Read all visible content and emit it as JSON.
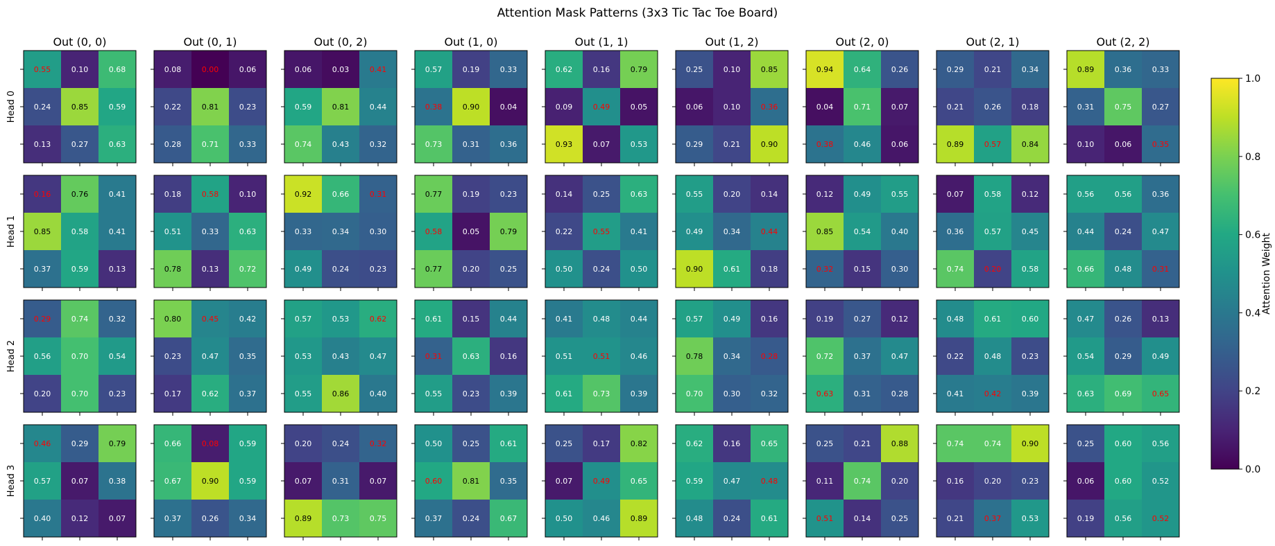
{
  "chart_data": {
    "type": "heatmap",
    "title": "Attention Mask Patterns (3x3 Tic Tac Toe Board)",
    "colormap": "viridis",
    "color_range": [
      0.0,
      1.0
    ],
    "colorbar": {
      "label": "Attention Weight",
      "ticks": [
        0.0,
        0.2,
        0.4,
        0.6,
        0.8,
        1.0
      ],
      "tick_labels": [
        "0.0",
        "0.2",
        "0.4",
        "0.6",
        "0.8",
        "1.0"
      ],
      "placement": "right"
    },
    "highlight_color": "#ff0000",
    "columns": [
      "Out (0, 0)",
      "Out (0, 1)",
      "Out (0, 2)",
      "Out (1, 0)",
      "Out (1, 1)",
      "Out (1, 2)",
      "Out (2, 0)",
      "Out (2, 1)",
      "Out (2, 2)"
    ],
    "rows": [
      "Head 0",
      "Head 1",
      "Head 2",
      "Head 3"
    ],
    "panels": [
      [
        {
          "values": [
            [
              "0.55",
              "0.10",
              "0.68"
            ],
            [
              "0.24",
              "0.85",
              "0.59"
            ],
            [
              "0.13",
              "0.27",
              "0.63"
            ]
          ],
          "highlight": [
            0,
            0
          ]
        },
        {
          "values": [
            [
              "0.08",
              "0.00",
              "0.06"
            ],
            [
              "0.22",
              "0.81",
              "0.23"
            ],
            [
              "0.28",
              "0.71",
              "0.33"
            ]
          ],
          "highlight": [
            0,
            1
          ]
        },
        {
          "values": [
            [
              "0.06",
              "0.03",
              "0.41"
            ],
            [
              "0.59",
              "0.81",
              "0.44"
            ],
            [
              "0.74",
              "0.43",
              "0.32"
            ]
          ],
          "highlight": [
            0,
            2
          ]
        },
        {
          "values": [
            [
              "0.57",
              "0.19",
              "0.33"
            ],
            [
              "0.38",
              "0.90",
              "0.04"
            ],
            [
              "0.73",
              "0.31",
              "0.36"
            ]
          ],
          "highlight": [
            1,
            0
          ]
        },
        {
          "values": [
            [
              "0.62",
              "0.16",
              "0.79"
            ],
            [
              "0.09",
              "0.49",
              "0.05"
            ],
            [
              "0.93",
              "0.07",
              "0.53"
            ]
          ],
          "highlight": [
            1,
            1
          ]
        },
        {
          "values": [
            [
              "0.25",
              "0.10",
              "0.85"
            ],
            [
              "0.06",
              "0.10",
              "0.36"
            ],
            [
              "0.29",
              "0.21",
              "0.90"
            ]
          ],
          "highlight": [
            1,
            2
          ]
        },
        {
          "values": [
            [
              "0.94",
              "0.64",
              "0.26"
            ],
            [
              "0.04",
              "0.71",
              "0.07"
            ],
            [
              "0.38",
              "0.46",
              "0.06"
            ]
          ],
          "highlight": [
            2,
            0
          ]
        },
        {
          "values": [
            [
              "0.29",
              "0.21",
              "0.34"
            ],
            [
              "0.21",
              "0.26",
              "0.18"
            ],
            [
              "0.89",
              "0.57",
              "0.84"
            ]
          ],
          "highlight": [
            2,
            1
          ]
        },
        {
          "values": [
            [
              "0.89",
              "0.36",
              "0.33"
            ],
            [
              "0.31",
              "0.75",
              "0.27"
            ],
            [
              "0.10",
              "0.06",
              "0.35"
            ]
          ],
          "highlight": [
            2,
            2
          ]
        }
      ],
      [
        {
          "values": [
            [
              "0.16",
              "0.76",
              "0.41"
            ],
            [
              "0.85",
              "0.58",
              "0.41"
            ],
            [
              "0.37",
              "0.59",
              "0.13"
            ]
          ],
          "highlight": [
            0,
            0
          ]
        },
        {
          "values": [
            [
              "0.18",
              "0.58",
              "0.10"
            ],
            [
              "0.51",
              "0.33",
              "0.63"
            ],
            [
              "0.78",
              "0.13",
              "0.72"
            ]
          ],
          "highlight": [
            0,
            1
          ]
        },
        {
          "values": [
            [
              "0.92",
              "0.66",
              "0.31"
            ],
            [
              "0.33",
              "0.34",
              "0.30"
            ],
            [
              "0.49",
              "0.24",
              "0.23"
            ]
          ],
          "highlight": [
            0,
            2
          ]
        },
        {
          "values": [
            [
              "0.77",
              "0.19",
              "0.23"
            ],
            [
              "0.58",
              "0.05",
              "0.79"
            ],
            [
              "0.77",
              "0.20",
              "0.25"
            ]
          ],
          "highlight": [
            1,
            0
          ]
        },
        {
          "values": [
            [
              "0.14",
              "0.25",
              "0.63"
            ],
            [
              "0.22",
              "0.55",
              "0.41"
            ],
            [
              "0.50",
              "0.24",
              "0.50"
            ]
          ],
          "highlight": [
            1,
            1
          ]
        },
        {
          "values": [
            [
              "0.55",
              "0.20",
              "0.14"
            ],
            [
              "0.49",
              "0.34",
              "0.44"
            ],
            [
              "0.90",
              "0.61",
              "0.18"
            ]
          ],
          "highlight": [
            1,
            2
          ]
        },
        {
          "values": [
            [
              "0.12",
              "0.49",
              "0.55"
            ],
            [
              "0.85",
              "0.54",
              "0.40"
            ],
            [
              "0.32",
              "0.15",
              "0.30"
            ]
          ],
          "highlight": [
            2,
            0
          ]
        },
        {
          "values": [
            [
              "0.07",
              "0.58",
              "0.12"
            ],
            [
              "0.36",
              "0.57",
              "0.45"
            ],
            [
              "0.74",
              "0.20",
              "0.58"
            ]
          ],
          "highlight": [
            2,
            1
          ]
        },
        {
          "values": [
            [
              "0.56",
              "0.56",
              "0.36"
            ],
            [
              "0.44",
              "0.24",
              "0.47"
            ],
            [
              "0.66",
              "0.48",
              "0.31"
            ]
          ],
          "highlight": [
            2,
            2
          ]
        }
      ],
      [
        {
          "values": [
            [
              "0.29",
              "0.74",
              "0.32"
            ],
            [
              "0.56",
              "0.70",
              "0.54"
            ],
            [
              "0.20",
              "0.70",
              "0.23"
            ]
          ],
          "highlight": [
            0,
            0
          ]
        },
        {
          "values": [
            [
              "0.80",
              "0.45",
              "0.42"
            ],
            [
              "0.23",
              "0.47",
              "0.35"
            ],
            [
              "0.17",
              "0.62",
              "0.37"
            ]
          ],
          "highlight": [
            0,
            1
          ]
        },
        {
          "values": [
            [
              "0.57",
              "0.53",
              "0.62"
            ],
            [
              "0.53",
              "0.43",
              "0.47"
            ],
            [
              "0.55",
              "0.86",
              "0.40"
            ]
          ],
          "highlight": [
            0,
            2
          ]
        },
        {
          "values": [
            [
              "0.61",
              "0.15",
              "0.44"
            ],
            [
              "0.31",
              "0.63",
              "0.16"
            ],
            [
              "0.55",
              "0.23",
              "0.39"
            ]
          ],
          "highlight": [
            1,
            0
          ]
        },
        {
          "values": [
            [
              "0.41",
              "0.48",
              "0.44"
            ],
            [
              "0.51",
              "0.51",
              "0.46"
            ],
            [
              "0.61",
              "0.73",
              "0.39"
            ]
          ],
          "highlight": [
            1,
            1
          ]
        },
        {
          "values": [
            [
              "0.57",
              "0.49",
              "0.16"
            ],
            [
              "0.78",
              "0.34",
              "0.28"
            ],
            [
              "0.70",
              "0.30",
              "0.32"
            ]
          ],
          "highlight": [
            1,
            2
          ]
        },
        {
          "values": [
            [
              "0.19",
              "0.27",
              "0.12"
            ],
            [
              "0.72",
              "0.37",
              "0.47"
            ],
            [
              "0.63",
              "0.31",
              "0.28"
            ]
          ],
          "highlight": [
            2,
            0
          ]
        },
        {
          "values": [
            [
              "0.48",
              "0.61",
              "0.60"
            ],
            [
              "0.22",
              "0.48",
              "0.23"
            ],
            [
              "0.41",
              "0.42",
              "0.39"
            ]
          ],
          "highlight": [
            2,
            1
          ]
        },
        {
          "values": [
            [
              "0.47",
              "0.26",
              "0.13"
            ],
            [
              "0.54",
              "0.29",
              "0.49"
            ],
            [
              "0.63",
              "0.69",
              "0.65"
            ]
          ],
          "highlight": [
            2,
            2
          ]
        }
      ],
      [
        {
          "values": [
            [
              "0.46",
              "0.29",
              "0.79"
            ],
            [
              "0.57",
              "0.07",
              "0.38"
            ],
            [
              "0.40",
              "0.12",
              "0.07"
            ]
          ],
          "highlight": [
            0,
            0
          ]
        },
        {
          "values": [
            [
              "0.66",
              "0.08",
              "0.59"
            ],
            [
              "0.67",
              "0.90",
              "0.59"
            ],
            [
              "0.37",
              "0.26",
              "0.34"
            ]
          ],
          "highlight": [
            0,
            1
          ]
        },
        {
          "values": [
            [
              "0.20",
              "0.24",
              "0.32"
            ],
            [
              "0.07",
              "0.31",
              "0.07"
            ],
            [
              "0.89",
              "0.73",
              "0.75"
            ]
          ],
          "highlight": [
            0,
            2
          ]
        },
        {
          "values": [
            [
              "0.50",
              "0.25",
              "0.61"
            ],
            [
              "0.60",
              "0.81",
              "0.35"
            ],
            [
              "0.37",
              "0.24",
              "0.67"
            ]
          ],
          "highlight": [
            1,
            0
          ]
        },
        {
          "values": [
            [
              "0.25",
              "0.17",
              "0.82"
            ],
            [
              "0.07",
              "0.49",
              "0.65"
            ],
            [
              "0.50",
              "0.46",
              "0.89"
            ]
          ],
          "highlight": [
            1,
            1
          ]
        },
        {
          "values": [
            [
              "0.62",
              "0.16",
              "0.65"
            ],
            [
              "0.59",
              "0.47",
              "0.48"
            ],
            [
              "0.48",
              "0.24",
              "0.61"
            ]
          ],
          "highlight": [
            1,
            2
          ]
        },
        {
          "values": [
            [
              "0.25",
              "0.21",
              "0.88"
            ],
            [
              "0.11",
              "0.74",
              "0.20"
            ],
            [
              "0.51",
              "0.14",
              "0.25"
            ]
          ],
          "highlight": [
            2,
            0
          ]
        },
        {
          "values": [
            [
              "0.74",
              "0.74",
              "0.90"
            ],
            [
              "0.16",
              "0.20",
              "0.23"
            ],
            [
              "0.21",
              "0.37",
              "0.53"
            ]
          ],
          "highlight": [
            2,
            1
          ]
        },
        {
          "values": [
            [
              "0.25",
              "0.60",
              "0.56"
            ],
            [
              "0.06",
              "0.60",
              "0.52"
            ],
            [
              "0.19",
              "0.56",
              "0.52"
            ]
          ],
          "highlight": [
            2,
            2
          ]
        }
      ]
    ]
  }
}
